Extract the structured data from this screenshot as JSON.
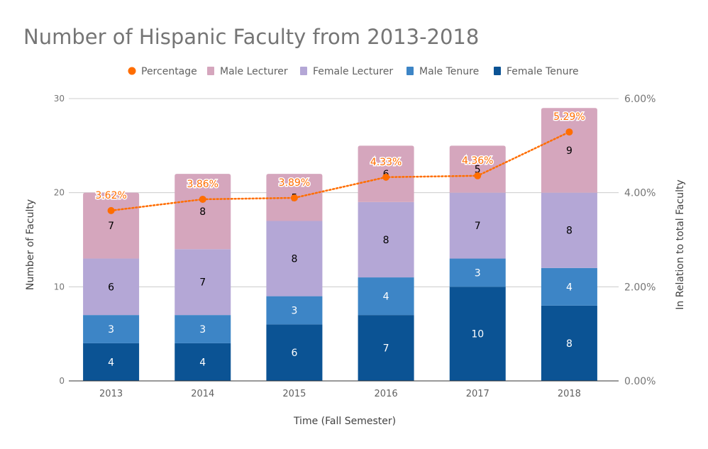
{
  "chart_data": {
    "type": "bar",
    "stacked": true,
    "title": "Number of Hispanic Faculty from 2013-2018",
    "xlabel": "Time (Fall Semester)",
    "ylabel": "Number of Faculty",
    "y2label": "In Relation to total Faculty",
    "categories": [
      "2013",
      "2014",
      "2015",
      "2016",
      "2017",
      "2018"
    ],
    "ylim": [
      0,
      30
    ],
    "y_ticks": [
      "0",
      "10",
      "20",
      "30"
    ],
    "y2lim": [
      0,
      0.06
    ],
    "y2_ticks": [
      "0.00%",
      "2.00%",
      "4.00%",
      "6.00%"
    ],
    "grid": true,
    "legend_position": "top",
    "legend": [
      {
        "name": "Percentage",
        "color": "#ff6d00",
        "shape": "circle"
      },
      {
        "name": "Male Lecturer",
        "color": "#d5a6bd",
        "shape": "square"
      },
      {
        "name": "Female Lecturer",
        "color": "#b4a7d6",
        "shape": "square"
      },
      {
        "name": "Male Tenure",
        "color": "#3d85c6",
        "shape": "square"
      },
      {
        "name": "Female Tenure",
        "color": "#0b5394",
        "shape": "square"
      }
    ],
    "series": [
      {
        "name": "Female Tenure",
        "color": "#0b5394",
        "label_color": "#ffffff",
        "values": [
          4,
          4,
          6,
          7,
          10,
          8
        ]
      },
      {
        "name": "Male Tenure",
        "color": "#3d85c6",
        "label_color": "#ffffff",
        "values": [
          3,
          3,
          3,
          4,
          3,
          4
        ]
      },
      {
        "name": "Female Lecturer",
        "color": "#b4a7d6",
        "label_color": "#000000",
        "values": [
          6,
          7,
          8,
          8,
          7,
          8
        ]
      },
      {
        "name": "Male Lecturer",
        "color": "#d5a6bd",
        "label_color": "#000000",
        "values": [
          7,
          8,
          5,
          6,
          5,
          9
        ]
      }
    ],
    "line_series": {
      "name": "Percentage",
      "color": "#ff6d00",
      "axis": "right",
      "style": "dotted",
      "values": [
        0.0362,
        0.0386,
        0.0389,
        0.0433,
        0.0436,
        0.0529
      ],
      "labels": [
        "3.62%",
        "3.86%",
        "3.89%",
        "4.33%",
        "4.36%",
        "5.29%"
      ]
    }
  }
}
